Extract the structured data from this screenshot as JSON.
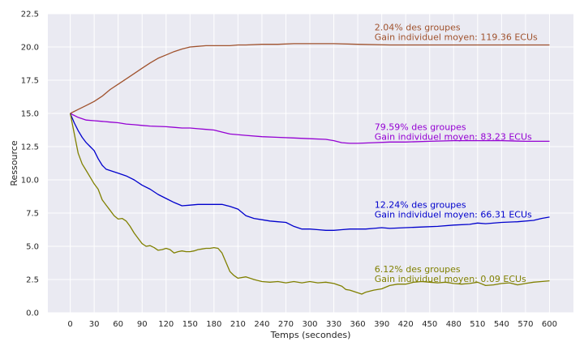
{
  "chart_data": {
    "type": "line",
    "xlabel": "Temps (secondes)",
    "ylabel": "Ressource",
    "xlim": [
      -28,
      630
    ],
    "ylim": [
      0,
      22.5
    ],
    "grid": true,
    "xticks": [
      0,
      30,
      60,
      90,
      120,
      150,
      180,
      210,
      240,
      270,
      300,
      330,
      360,
      390,
      420,
      450,
      480,
      510,
      540,
      570,
      600
    ],
    "yticks": [
      0.0,
      2.5,
      5.0,
      7.5,
      10.0,
      12.5,
      15.0,
      17.5,
      20.0,
      22.5
    ],
    "series": [
      {
        "color": "#a0522d",
        "points": [
          [
            0,
            15
          ],
          [
            10,
            15.3
          ],
          [
            20,
            15.6
          ],
          [
            30,
            15.9
          ],
          [
            40,
            16.3
          ],
          [
            50,
            16.8
          ],
          [
            60,
            17.2
          ],
          [
            70,
            17.6
          ],
          [
            80,
            18.0
          ],
          [
            90,
            18.4
          ],
          [
            100,
            18.8
          ],
          [
            110,
            19.15
          ],
          [
            120,
            19.4
          ],
          [
            130,
            19.65
          ],
          [
            140,
            19.85
          ],
          [
            150,
            20.0
          ],
          [
            160,
            20.05
          ],
          [
            170,
            20.1
          ],
          [
            180,
            20.1
          ],
          [
            190,
            20.1
          ],
          [
            200,
            20.1
          ],
          [
            210,
            20.15
          ],
          [
            220,
            20.15
          ],
          [
            240,
            20.2
          ],
          [
            260,
            20.2
          ],
          [
            280,
            20.25
          ],
          [
            300,
            20.25
          ],
          [
            330,
            20.25
          ],
          [
            360,
            20.2
          ],
          [
            400,
            20.15
          ],
          [
            450,
            20.15
          ],
          [
            500,
            20.15
          ],
          [
            550,
            20.15
          ],
          [
            600,
            20.15
          ]
        ]
      },
      {
        "color": "#9400d3",
        "points": [
          [
            0,
            15
          ],
          [
            10,
            14.7
          ],
          [
            20,
            14.5
          ],
          [
            30,
            14.45
          ],
          [
            40,
            14.4
          ],
          [
            50,
            14.35
          ],
          [
            60,
            14.3
          ],
          [
            70,
            14.2
          ],
          [
            80,
            14.15
          ],
          [
            90,
            14.1
          ],
          [
            100,
            14.05
          ],
          [
            120,
            14.0
          ],
          [
            130,
            13.95
          ],
          [
            140,
            13.9
          ],
          [
            150,
            13.9
          ],
          [
            160,
            13.85
          ],
          [
            170,
            13.8
          ],
          [
            180,
            13.75
          ],
          [
            190,
            13.6
          ],
          [
            200,
            13.45
          ],
          [
            220,
            13.35
          ],
          [
            240,
            13.25
          ],
          [
            260,
            13.2
          ],
          [
            280,
            13.15
          ],
          [
            300,
            13.1
          ],
          [
            320,
            13.05
          ],
          [
            330,
            12.95
          ],
          [
            340,
            12.8
          ],
          [
            350,
            12.75
          ],
          [
            360,
            12.75
          ],
          [
            380,
            12.8
          ],
          [
            400,
            12.85
          ],
          [
            420,
            12.85
          ],
          [
            450,
            12.9
          ],
          [
            480,
            12.95
          ],
          [
            510,
            12.95
          ],
          [
            540,
            12.95
          ],
          [
            570,
            12.9
          ],
          [
            600,
            12.9
          ]
        ]
      },
      {
        "color": "#0000cd",
        "points": [
          [
            0,
            15
          ],
          [
            5,
            14.3
          ],
          [
            10,
            13.7
          ],
          [
            15,
            13.2
          ],
          [
            20,
            12.8
          ],
          [
            25,
            12.5
          ],
          [
            30,
            12.2
          ],
          [
            35,
            11.6
          ],
          [
            40,
            11.1
          ],
          [
            45,
            10.8
          ],
          [
            50,
            10.7
          ],
          [
            60,
            10.5
          ],
          [
            70,
            10.3
          ],
          [
            80,
            10.0
          ],
          [
            90,
            9.6
          ],
          [
            100,
            9.3
          ],
          [
            110,
            8.9
          ],
          [
            120,
            8.6
          ],
          [
            130,
            8.3
          ],
          [
            140,
            8.05
          ],
          [
            150,
            8.1
          ],
          [
            160,
            8.15
          ],
          [
            170,
            8.15
          ],
          [
            180,
            8.15
          ],
          [
            190,
            8.15
          ],
          [
            200,
            8.0
          ],
          [
            210,
            7.8
          ],
          [
            220,
            7.3
          ],
          [
            230,
            7.1
          ],
          [
            240,
            7.0
          ],
          [
            250,
            6.9
          ],
          [
            260,
            6.85
          ],
          [
            270,
            6.8
          ],
          [
            280,
            6.5
          ],
          [
            290,
            6.3
          ],
          [
            300,
            6.3
          ],
          [
            310,
            6.25
          ],
          [
            320,
            6.2
          ],
          [
            330,
            6.2
          ],
          [
            340,
            6.25
          ],
          [
            350,
            6.3
          ],
          [
            360,
            6.3
          ],
          [
            370,
            6.3
          ],
          [
            380,
            6.35
          ],
          [
            390,
            6.4
          ],
          [
            400,
            6.35
          ],
          [
            420,
            6.4
          ],
          [
            440,
            6.45
          ],
          [
            460,
            6.5
          ],
          [
            480,
            6.6
          ],
          [
            500,
            6.65
          ],
          [
            510,
            6.75
          ],
          [
            520,
            6.7
          ],
          [
            540,
            6.8
          ],
          [
            560,
            6.85
          ],
          [
            580,
            6.95
          ],
          [
            590,
            7.1
          ],
          [
            600,
            7.2
          ]
        ]
      },
      {
        "color": "#808000",
        "points": [
          [
            0,
            15
          ],
          [
            5,
            13.5
          ],
          [
            10,
            12.0
          ],
          [
            15,
            11.2
          ],
          [
            20,
            10.7
          ],
          [
            25,
            10.2
          ],
          [
            30,
            9.7
          ],
          [
            35,
            9.3
          ],
          [
            40,
            8.5
          ],
          [
            45,
            8.1
          ],
          [
            50,
            7.7
          ],
          [
            55,
            7.3
          ],
          [
            60,
            7.05
          ],
          [
            65,
            7.1
          ],
          [
            70,
            6.9
          ],
          [
            75,
            6.5
          ],
          [
            80,
            6.0
          ],
          [
            85,
            5.6
          ],
          [
            90,
            5.2
          ],
          [
            95,
            5.0
          ],
          [
            100,
            5.05
          ],
          [
            105,
            4.9
          ],
          [
            110,
            4.7
          ],
          [
            115,
            4.75
          ],
          [
            120,
            4.85
          ],
          [
            125,
            4.75
          ],
          [
            130,
            4.5
          ],
          [
            135,
            4.6
          ],
          [
            140,
            4.65
          ],
          [
            145,
            4.6
          ],
          [
            150,
            4.6
          ],
          [
            155,
            4.65
          ],
          [
            160,
            4.75
          ],
          [
            165,
            4.8
          ],
          [
            170,
            4.85
          ],
          [
            175,
            4.85
          ],
          [
            180,
            4.9
          ],
          [
            185,
            4.85
          ],
          [
            190,
            4.5
          ],
          [
            195,
            3.8
          ],
          [
            200,
            3.1
          ],
          [
            205,
            2.8
          ],
          [
            210,
            2.6
          ],
          [
            220,
            2.7
          ],
          [
            230,
            2.5
          ],
          [
            240,
            2.35
          ],
          [
            250,
            2.3
          ],
          [
            260,
            2.35
          ],
          [
            270,
            2.25
          ],
          [
            280,
            2.35
          ],
          [
            290,
            2.25
          ],
          [
            300,
            2.35
          ],
          [
            310,
            2.25
          ],
          [
            320,
            2.3
          ],
          [
            330,
            2.2
          ],
          [
            340,
            2.0
          ],
          [
            345,
            1.75
          ],
          [
            350,
            1.7
          ],
          [
            360,
            1.5
          ],
          [
            365,
            1.4
          ],
          [
            370,
            1.55
          ],
          [
            380,
            1.7
          ],
          [
            390,
            1.8
          ],
          [
            400,
            2.05
          ],
          [
            410,
            2.15
          ],
          [
            420,
            2.15
          ],
          [
            430,
            2.3
          ],
          [
            440,
            2.35
          ],
          [
            450,
            2.3
          ],
          [
            460,
            2.25
          ],
          [
            470,
            2.3
          ],
          [
            480,
            2.2
          ],
          [
            490,
            2.15
          ],
          [
            500,
            2.2
          ],
          [
            510,
            2.3
          ],
          [
            520,
            2.05
          ],
          [
            530,
            2.1
          ],
          [
            540,
            2.2
          ],
          [
            550,
            2.25
          ],
          [
            560,
            2.1
          ],
          [
            570,
            2.2
          ],
          [
            580,
            2.3
          ],
          [
            590,
            2.35
          ],
          [
            600,
            2.4
          ]
        ]
      }
    ],
    "annotations": [
      {
        "lines": [
          "2.04% des groupes",
          "Gain individuel moyen: 119.36 ECUs"
        ],
        "color": "#a0522d",
        "x": 381,
        "y": 21.25
      },
      {
        "lines": [
          "79.59% des groupes",
          "Gain individuel moyen: 83.23 ECUs"
        ],
        "color": "#9400d3",
        "x": 381,
        "y": 13.75
      },
      {
        "lines": [
          "12.24% des groupes",
          "Gain individuel moyen: 66.31 ECUs"
        ],
        "color": "#0000cd",
        "x": 381,
        "y": 7.9
      },
      {
        "lines": [
          "6.12% des groupes",
          "Gain individuel moyen: 0.09 ECUs"
        ],
        "color": "#808000",
        "x": 381,
        "y": 3.05
      }
    ]
  }
}
